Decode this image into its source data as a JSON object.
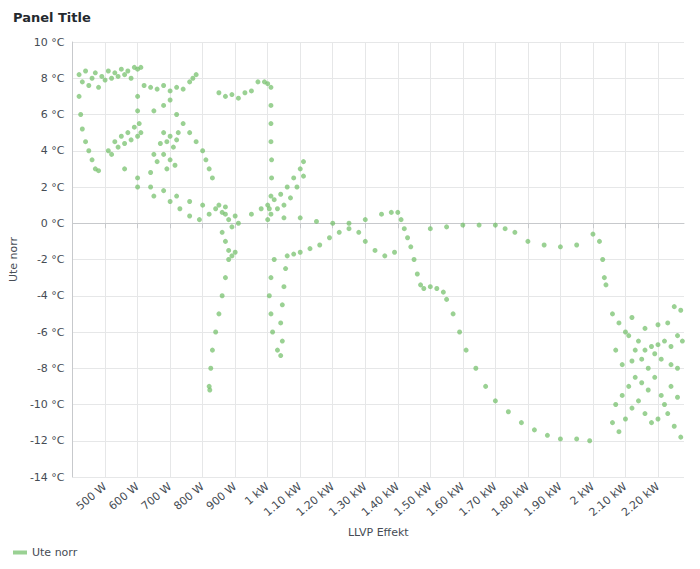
{
  "chart_data": {
    "type": "scatter",
    "title": "Panel Title",
    "x_label": "LLVP Effekt",
    "y_label": "Ute norr",
    "xlim": [
      400,
      2280
    ],
    "ylim": [
      -14,
      10
    ],
    "xticks": [
      {
        "value": 500,
        "label": "500 W"
      },
      {
        "value": 600,
        "label": "600 W"
      },
      {
        "value": 700,
        "label": "700 W"
      },
      {
        "value": 800,
        "label": "800 W"
      },
      {
        "value": 900,
        "label": "900 W"
      },
      {
        "value": 1000,
        "label": "1 kW"
      },
      {
        "value": 1100,
        "label": "1.10 kW"
      },
      {
        "value": 1200,
        "label": "1.20 kW"
      },
      {
        "value": 1300,
        "label": "1.30 kW"
      },
      {
        "value": 1400,
        "label": "1.40 kW"
      },
      {
        "value": 1500,
        "label": "1.50 kW"
      },
      {
        "value": 1600,
        "label": "1.60 kW"
      },
      {
        "value": 1700,
        "label": "1.70 kW"
      },
      {
        "value": 1800,
        "label": "1.80 kW"
      },
      {
        "value": 1900,
        "label": "1.90 kW"
      },
      {
        "value": 2000,
        "label": "2 kW"
      },
      {
        "value": 2100,
        "label": "2.10 kW"
      },
      {
        "value": 2200,
        "label": "2.20 kW"
      }
    ],
    "yticks": [
      {
        "value": -14,
        "label": "-14 °C"
      },
      {
        "value": -12,
        "label": "-12 °C"
      },
      {
        "value": -10,
        "label": "-10 °C"
      },
      {
        "value": -8,
        "label": "-8 °C"
      },
      {
        "value": -6,
        "label": "-6 °C"
      },
      {
        "value": -4,
        "label": "-4 °C"
      },
      {
        "value": -2,
        "label": "-2 °C"
      },
      {
        "value": 0,
        "label": "0 °C"
      },
      {
        "value": 2,
        "label": "2 °C"
      },
      {
        "value": 4,
        "label": "4 °C"
      },
      {
        "value": 6,
        "label": "6 °C"
      },
      {
        "value": 8,
        "label": "8 °C"
      },
      {
        "value": 10,
        "label": "10 °C"
      }
    ],
    "grid": true,
    "legend": "bottom-left",
    "series": [
      {
        "name": "Ute norr",
        "color": "#73bf69",
        "marker": "circle",
        "x": [
          420,
          430,
          440,
          450,
          460,
          470,
          480,
          490,
          500,
          510,
          520,
          530,
          540,
          550,
          560,
          570,
          580,
          590,
          600,
          610,
          420,
          425,
          430,
          440,
          450,
          460,
          470,
          480,
          600,
          600,
          605,
          610,
          600,
          590,
          580,
          570,
          560,
          550,
          540,
          530,
          520,
          510,
          680,
          690,
          700,
          710,
          700,
          690,
          680,
          670,
          660,
          650,
          640,
          720,
          725,
          715,
          620,
          640,
          660,
          680,
          700,
          720,
          740,
          760,
          770,
          780,
          650,
          680,
          700,
          720,
          740,
          760,
          780,
          800,
          810,
          820,
          830,
          850,
          870,
          890,
          910,
          930,
          950,
          970,
          990,
          1000,
          1010,
          1010,
          1010,
          1010,
          1012,
          1012,
          1010,
          1005,
          560,
          600,
          640,
          680,
          720,
          760,
          800,
          840,
          870,
          600,
          650,
          700,
          730,
          760,
          790,
          820,
          850,
          860,
          870,
          880,
          890,
          900,
          910,
          860,
          870,
          880,
          890,
          900,
          950,
          980,
          1000,
          1020,
          1040,
          1060,
          1080,
          1100,
          1110,
          1110,
          1090,
          1070,
          1050,
          1030,
          1010,
          880,
          870,
          860,
          850,
          840,
          830,
          825,
          820,
          822,
          1020,
          1010,
          1005,
          1010,
          1015,
          1030,
          1040,
          1045,
          1040,
          1045,
          1050,
          1055,
          1060,
          1080,
          1100,
          1130,
          1160,
          1190,
          1220,
          1250,
          1280,
          1300,
          1330,
          1360,
          1390,
          1000,
          1050,
          1100,
          1150,
          1200,
          1250,
          1300,
          1350,
          1380,
          1400,
          1410,
          1420,
          1430,
          1440,
          1450,
          1460,
          1470,
          1480,
          1500,
          1520,
          1540,
          1550,
          1570,
          1590,
          1610,
          1640,
          1670,
          1700,
          1740,
          1780,
          1820,
          1860,
          1900,
          1950,
          1990,
          1500,
          1550,
          1600,
          1650,
          1700,
          1730,
          1760,
          1800,
          1850,
          1900,
          1950,
          2000,
          2020,
          2030,
          2035,
          2040,
          2060,
          2080,
          2100,
          2120,
          2140,
          2160,
          2180,
          2200,
          2220,
          2240,
          2260,
          2270,
          2250,
          2230,
          2210,
          2190,
          2170,
          2150,
          2130,
          2110,
          2090,
          2070,
          2060,
          2080,
          2100,
          2120,
          2140,
          2160,
          2180,
          2200,
          2220,
          2240,
          2260,
          2270,
          2250,
          2230,
          2210,
          2190,
          2170,
          2150,
          2130,
          2110,
          2090,
          2070,
          2260,
          2275,
          2240,
          2200,
          2160,
          2120
        ],
        "values": [
          8.2,
          7.8,
          8.4,
          7.6,
          8.0,
          8.3,
          7.5,
          8.1,
          7.9,
          8.4,
          8.0,
          8.3,
          8.1,
          8.5,
          8.2,
          8.4,
          8.0,
          8.6,
          8.5,
          8.6,
          7.0,
          6.0,
          5.2,
          4.5,
          4.0,
          3.5,
          3.0,
          2.9,
          7.0,
          6.2,
          5.5,
          5.0,
          4.8,
          5.3,
          4.6,
          5.0,
          4.4,
          4.8,
          4.2,
          4.5,
          3.8,
          4.0,
          5.0,
          4.5,
          4.8,
          4.2,
          3.5,
          3.0,
          3.8,
          4.4,
          3.4,
          3.8,
          2.8,
          4.6,
          5.0,
          3.2,
          7.6,
          7.5,
          7.4,
          7.6,
          7.3,
          7.5,
          7.4,
          7.8,
          8.0,
          8.2,
          6.2,
          6.5,
          6.8,
          6.0,
          5.5,
          5.0,
          4.5,
          4.0,
          3.5,
          3.0,
          2.5,
          7.2,
          7.0,
          7.1,
          6.9,
          7.2,
          7.3,
          7.8,
          7.8,
          7.7,
          7.5,
          6.5,
          5.5,
          4.5,
          3.5,
          2.5,
          1.5,
          0.8,
          3.0,
          2.5,
          2.0,
          1.8,
          1.5,
          1.2,
          1.0,
          0.8,
          0.5,
          2.0,
          1.5,
          1.2,
          0.8,
          0.4,
          0.2,
          0.5,
          1.0,
          0.6,
          0.9,
          0.2,
          -0.2,
          0.4,
          0.0,
          -0.5,
          -1.0,
          -1.5,
          -1.8,
          -1.6,
          0.5,
          0.8,
          1.0,
          1.3,
          1.6,
          2.0,
          2.5,
          3.0,
          3.4,
          2.6,
          2.0,
          1.4,
          1.0,
          0.8,
          0.5,
          -2.0,
          -3.0,
          -4.0,
          -5.0,
          -6.0,
          -7.0,
          -8.0,
          -9.0,
          -9.2,
          -2.0,
          -3.0,
          -4.0,
          -5.0,
          -6.0,
          -7.0,
          -7.3,
          -6.5,
          -5.5,
          -4.5,
          -3.5,
          -2.5,
          -1.8,
          -1.7,
          -1.6,
          -1.4,
          -1.2,
          -0.8,
          -0.5,
          -0.3,
          -0.5,
          -1.0,
          -1.5,
          -1.8,
          -1.6,
          0.2,
          0.3,
          0.3,
          0.1,
          0.0,
          0.0,
          0.2,
          0.5,
          0.6,
          0.6,
          0.2,
          -0.3,
          -0.8,
          -1.3,
          -2.0,
          -2.8,
          -3.4,
          -3.6,
          -3.5,
          -3.6,
          -3.8,
          -4.2,
          -5.0,
          -6.0,
          -7.0,
          -8.0,
          -9.0,
          -9.8,
          -10.4,
          -11.0,
          -11.4,
          -11.7,
          -11.9,
          -11.9,
          -12.0,
          -0.3,
          -0.2,
          -0.1,
          -0.1,
          -0.1,
          -0.3,
          -0.5,
          -1.0,
          -1.2,
          -1.3,
          -1.2,
          -0.6,
          -1.0,
          -2.0,
          -3.0,
          -3.4,
          -5.0,
          -5.5,
          -6.0,
          -5.2,
          -6.5,
          -7.0,
          -6.8,
          -6.7,
          -6.5,
          -6.8,
          -6.2,
          -4.8,
          -4.6,
          -5.5,
          -7.5,
          -7.2,
          -8.0,
          -7.5,
          -8.5,
          -9.0,
          -9.5,
          -10.0,
          -11.0,
          -11.5,
          -10.8,
          -10.2,
          -9.8,
          -10.5,
          -11.0,
          -10.8,
          -10.0,
          -9.0,
          -8.0,
          -11.8,
          -11.2,
          -10.5,
          -9.5,
          -8.5,
          -9.2,
          -8.8,
          -7.0,
          -6.2,
          -7.8,
          -7.0,
          -9.6,
          -6.5,
          -7.8,
          -5.6,
          -5.8,
          -7.6
        ]
      }
    ]
  }
}
